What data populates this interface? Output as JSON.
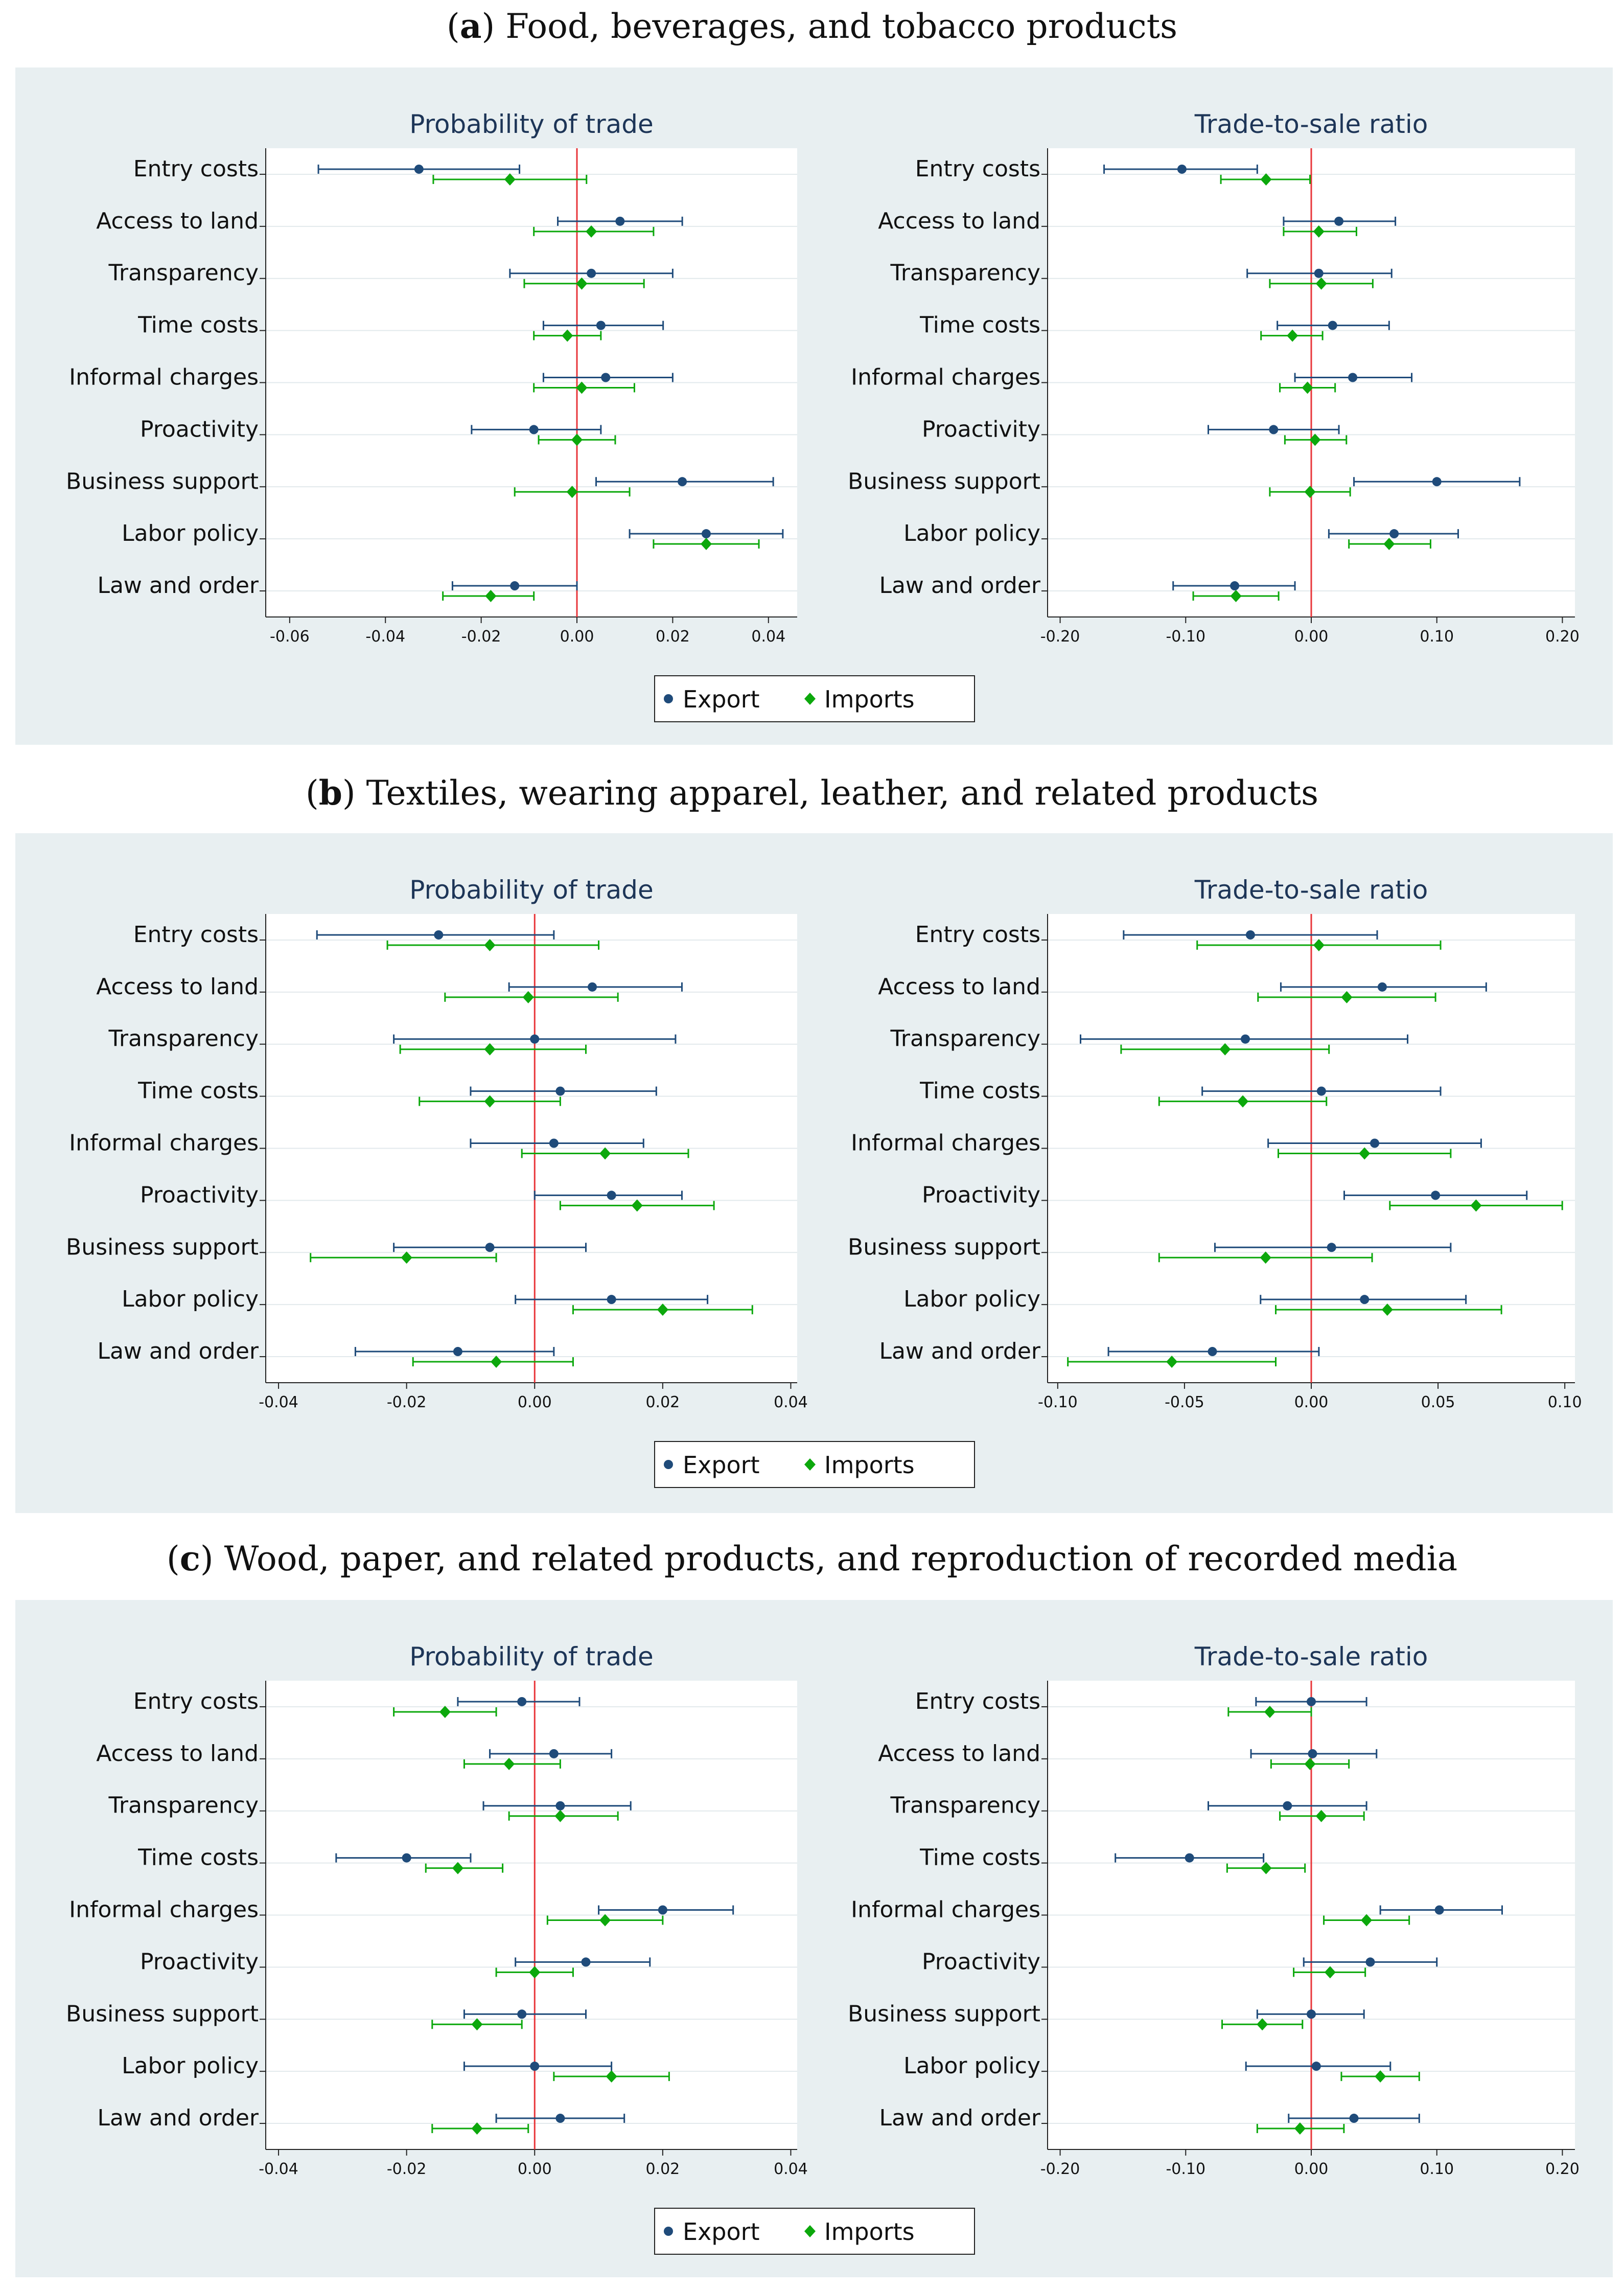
{
  "legend": {
    "export_label": "Export",
    "imports_label": "Imports"
  },
  "colors": {
    "export": "#1f4b7a",
    "imports": "#0ca80c",
    "zero_line": "#e8363a",
    "panel_bg": "#e8eff1",
    "grid": "#e2e9ec"
  },
  "categories": [
    "Entry costs",
    "Access to land",
    "Transparency",
    "Time costs",
    "Informal charges",
    "Proactivity",
    "Business support",
    "Labor policy",
    "Law and order"
  ],
  "panels": [
    {
      "letter": "a",
      "title": "Food, beverages, and tobacco products"
    },
    {
      "letter": "b",
      "title": "Textiles, wearing apparel, leather, and related products"
    },
    {
      "letter": "c",
      "title": "Wood, paper, and related products, and reproduction of recorded media"
    }
  ],
  "chart_data": [
    {
      "panel": "a",
      "type": "coefplot",
      "title": "Probability of trade",
      "xlim": [
        -0.065,
        0.046
      ],
      "xticks": [
        "-0.06",
        "-0.04",
        "-0.02",
        "0.00",
        "0.02",
        "0.04"
      ],
      "series": [
        {
          "name": "Export",
          "points": [
            {
              "est": -0.033,
              "lo": -0.054,
              "hi": -0.012
            },
            {
              "est": 0.009,
              "lo": -0.004,
              "hi": 0.022
            },
            {
              "est": 0.003,
              "lo": -0.014,
              "hi": 0.02
            },
            {
              "est": 0.005,
              "lo": -0.007,
              "hi": 0.018
            },
            {
              "est": 0.006,
              "lo": -0.007,
              "hi": 0.02
            },
            {
              "est": -0.009,
              "lo": -0.022,
              "hi": 0.005
            },
            {
              "est": 0.022,
              "lo": 0.004,
              "hi": 0.041
            },
            {
              "est": 0.027,
              "lo": 0.011,
              "hi": 0.043
            },
            {
              "est": -0.013,
              "lo": -0.026,
              "hi": 0.0
            }
          ]
        },
        {
          "name": "Imports",
          "points": [
            {
              "est": -0.014,
              "lo": -0.03,
              "hi": 0.002
            },
            {
              "est": 0.003,
              "lo": -0.009,
              "hi": 0.016
            },
            {
              "est": 0.001,
              "lo": -0.011,
              "hi": 0.014
            },
            {
              "est": -0.002,
              "lo": -0.009,
              "hi": 0.005
            },
            {
              "est": 0.001,
              "lo": -0.009,
              "hi": 0.012
            },
            {
              "est": 0.0,
              "lo": -0.008,
              "hi": 0.008
            },
            {
              "est": -0.001,
              "lo": -0.013,
              "hi": 0.011
            },
            {
              "est": 0.027,
              "lo": 0.016,
              "hi": 0.038
            },
            {
              "est": -0.018,
              "lo": -0.028,
              "hi": -0.009
            }
          ]
        }
      ]
    },
    {
      "panel": "a",
      "type": "coefplot",
      "title": "Trade-to-sale ratio",
      "xlim": [
        -0.21,
        0.21
      ],
      "xticks": [
        "-0.20",
        "-0.10",
        "0.00",
        "0.10",
        "0.20"
      ],
      "series": [
        {
          "name": "Export",
          "points": [
            {
              "est": -0.103,
              "lo": -0.165,
              "hi": -0.043
            },
            {
              "est": 0.022,
              "lo": -0.022,
              "hi": 0.067
            },
            {
              "est": 0.006,
              "lo": -0.051,
              "hi": 0.064
            },
            {
              "est": 0.017,
              "lo": -0.027,
              "hi": 0.062
            },
            {
              "est": 0.033,
              "lo": -0.013,
              "hi": 0.08
            },
            {
              "est": -0.03,
              "lo": -0.082,
              "hi": 0.022
            },
            {
              "est": 0.1,
              "lo": 0.034,
              "hi": 0.166
            },
            {
              "est": 0.066,
              "lo": 0.014,
              "hi": 0.117
            },
            {
              "est": -0.061,
              "lo": -0.11,
              "hi": -0.013
            }
          ]
        },
        {
          "name": "Imports",
          "points": [
            {
              "est": -0.036,
              "lo": -0.072,
              "hi": -0.001
            },
            {
              "est": 0.006,
              "lo": -0.022,
              "hi": 0.036
            },
            {
              "est": 0.008,
              "lo": -0.033,
              "hi": 0.049
            },
            {
              "est": -0.015,
              "lo": -0.04,
              "hi": 0.009
            },
            {
              "est": -0.003,
              "lo": -0.025,
              "hi": 0.019
            },
            {
              "est": 0.003,
              "lo": -0.021,
              "hi": 0.028
            },
            {
              "est": -0.001,
              "lo": -0.033,
              "hi": 0.031
            },
            {
              "est": 0.062,
              "lo": 0.03,
              "hi": 0.095
            },
            {
              "est": -0.06,
              "lo": -0.094,
              "hi": -0.026
            }
          ]
        }
      ]
    },
    {
      "panel": "b",
      "type": "coefplot",
      "title": "Probability of trade",
      "xlim": [
        -0.042,
        0.041
      ],
      "xticks": [
        "-0.04",
        "-0.02",
        "0.00",
        "0.02",
        "0.04"
      ],
      "series": [
        {
          "name": "Export",
          "points": [
            {
              "est": -0.015,
              "lo": -0.034,
              "hi": 0.003
            },
            {
              "est": 0.009,
              "lo": -0.004,
              "hi": 0.023
            },
            {
              "est": 0.0,
              "lo": -0.022,
              "hi": 0.022
            },
            {
              "est": 0.004,
              "lo": -0.01,
              "hi": 0.019
            },
            {
              "est": 0.003,
              "lo": -0.01,
              "hi": 0.017
            },
            {
              "est": 0.012,
              "lo": 0.0,
              "hi": 0.023
            },
            {
              "est": -0.007,
              "lo": -0.022,
              "hi": 0.008
            },
            {
              "est": 0.012,
              "lo": -0.003,
              "hi": 0.027
            },
            {
              "est": -0.012,
              "lo": -0.028,
              "hi": 0.003
            }
          ]
        },
        {
          "name": "Imports",
          "points": [
            {
              "est": -0.007,
              "lo": -0.023,
              "hi": 0.01
            },
            {
              "est": -0.001,
              "lo": -0.014,
              "hi": 0.013
            },
            {
              "est": -0.007,
              "lo": -0.021,
              "hi": 0.008
            },
            {
              "est": -0.007,
              "lo": -0.018,
              "hi": 0.004
            },
            {
              "est": 0.011,
              "lo": -0.002,
              "hi": 0.024
            },
            {
              "est": 0.016,
              "lo": 0.004,
              "hi": 0.028
            },
            {
              "est": -0.02,
              "lo": -0.035,
              "hi": -0.006
            },
            {
              "est": 0.02,
              "lo": 0.006,
              "hi": 0.034
            },
            {
              "est": -0.006,
              "lo": -0.019,
              "hi": 0.006
            }
          ]
        }
      ]
    },
    {
      "panel": "b",
      "type": "coefplot",
      "title": "Trade-to-sale ratio",
      "xlim": [
        -0.104,
        0.104
      ],
      "xticks": [
        "-0.10",
        "-0.05",
        "0.00",
        "0.05",
        "0.10"
      ],
      "series": [
        {
          "name": "Export",
          "points": [
            {
              "est": -0.024,
              "lo": -0.074,
              "hi": 0.026
            },
            {
              "est": 0.028,
              "lo": -0.012,
              "hi": 0.069
            },
            {
              "est": -0.026,
              "lo": -0.091,
              "hi": 0.038
            },
            {
              "est": 0.004,
              "lo": -0.043,
              "hi": 0.051
            },
            {
              "est": 0.025,
              "lo": -0.017,
              "hi": 0.067
            },
            {
              "est": 0.049,
              "lo": 0.013,
              "hi": 0.085
            },
            {
              "est": 0.008,
              "lo": -0.038,
              "hi": 0.055
            },
            {
              "est": 0.021,
              "lo": -0.02,
              "hi": 0.061
            },
            {
              "est": -0.039,
              "lo": -0.08,
              "hi": 0.003
            }
          ]
        },
        {
          "name": "Imports",
          "points": [
            {
              "est": 0.003,
              "lo": -0.045,
              "hi": 0.051
            },
            {
              "est": 0.014,
              "lo": -0.021,
              "hi": 0.049
            },
            {
              "est": -0.034,
              "lo": -0.075,
              "hi": 0.007
            },
            {
              "est": -0.027,
              "lo": -0.06,
              "hi": 0.006
            },
            {
              "est": 0.021,
              "lo": -0.013,
              "hi": 0.055
            },
            {
              "est": 0.065,
              "lo": 0.031,
              "hi": 0.099
            },
            {
              "est": -0.018,
              "lo": -0.06,
              "hi": 0.024
            },
            {
              "est": 0.03,
              "lo": -0.014,
              "hi": 0.075
            },
            {
              "est": -0.055,
              "lo": -0.096,
              "hi": -0.014
            }
          ]
        }
      ]
    },
    {
      "panel": "c",
      "type": "coefplot",
      "title": "Probability of trade",
      "xlim": [
        -0.042,
        0.041
      ],
      "xticks": [
        "-0.04",
        "-0.02",
        "0.00",
        "0.02",
        "0.04"
      ],
      "series": [
        {
          "name": "Export",
          "points": [
            {
              "est": -0.002,
              "lo": -0.012,
              "hi": 0.007
            },
            {
              "est": 0.003,
              "lo": -0.007,
              "hi": 0.012
            },
            {
              "est": 0.004,
              "lo": -0.008,
              "hi": 0.015
            },
            {
              "est": -0.02,
              "lo": -0.031,
              "hi": -0.01
            },
            {
              "est": 0.02,
              "lo": 0.01,
              "hi": 0.031
            },
            {
              "est": 0.008,
              "lo": -0.003,
              "hi": 0.018
            },
            {
              "est": -0.002,
              "lo": -0.011,
              "hi": 0.008
            },
            {
              "est": 0.0,
              "lo": -0.011,
              "hi": 0.012
            },
            {
              "est": 0.004,
              "lo": -0.006,
              "hi": 0.014
            }
          ]
        },
        {
          "name": "Imports",
          "points": [
            {
              "est": -0.014,
              "lo": -0.022,
              "hi": -0.006
            },
            {
              "est": -0.004,
              "lo": -0.011,
              "hi": 0.004
            },
            {
              "est": 0.004,
              "lo": -0.004,
              "hi": 0.013
            },
            {
              "est": -0.012,
              "lo": -0.017,
              "hi": -0.005
            },
            {
              "est": 0.011,
              "lo": 0.002,
              "hi": 0.02
            },
            {
              "est": 0.0,
              "lo": -0.006,
              "hi": 0.006
            },
            {
              "est": -0.009,
              "lo": -0.016,
              "hi": -0.002
            },
            {
              "est": 0.012,
              "lo": 0.003,
              "hi": 0.021
            },
            {
              "est": -0.009,
              "lo": -0.016,
              "hi": -0.001
            }
          ]
        }
      ]
    },
    {
      "panel": "c",
      "type": "coefplot",
      "title": "Trade-to-sale ratio",
      "xlim": [
        -0.21,
        0.21
      ],
      "xticks": [
        "-0.20",
        "-0.10",
        "0.00",
        "0.10",
        "0.20"
      ],
      "series": [
        {
          "name": "Export",
          "points": [
            {
              "est": 0.0,
              "lo": -0.044,
              "hi": 0.044
            },
            {
              "est": 0.001,
              "lo": -0.048,
              "hi": 0.052
            },
            {
              "est": -0.019,
              "lo": -0.082,
              "hi": 0.044
            },
            {
              "est": -0.097,
              "lo": -0.156,
              "hi": -0.038
            },
            {
              "est": 0.102,
              "lo": 0.055,
              "hi": 0.152
            },
            {
              "est": 0.047,
              "lo": -0.006,
              "hi": 0.1
            },
            {
              "est": 0.0,
              "lo": -0.043,
              "hi": 0.042
            },
            {
              "est": 0.004,
              "lo": -0.052,
              "hi": 0.063
            },
            {
              "est": 0.034,
              "lo": -0.018,
              "hi": 0.086
            }
          ]
        },
        {
          "name": "Imports",
          "points": [
            {
              "est": -0.033,
              "lo": -0.066,
              "hi": 0.0
            },
            {
              "est": -0.001,
              "lo": -0.032,
              "hi": 0.03
            },
            {
              "est": 0.008,
              "lo": -0.025,
              "hi": 0.042
            },
            {
              "est": -0.036,
              "lo": -0.067,
              "hi": -0.005
            },
            {
              "est": 0.044,
              "lo": 0.01,
              "hi": 0.078
            },
            {
              "est": 0.015,
              "lo": -0.014,
              "hi": 0.043
            },
            {
              "est": -0.039,
              "lo": -0.071,
              "hi": -0.007
            },
            {
              "est": 0.055,
              "lo": 0.024,
              "hi": 0.086
            },
            {
              "est": -0.009,
              "lo": -0.043,
              "hi": 0.026
            }
          ]
        }
      ]
    }
  ]
}
